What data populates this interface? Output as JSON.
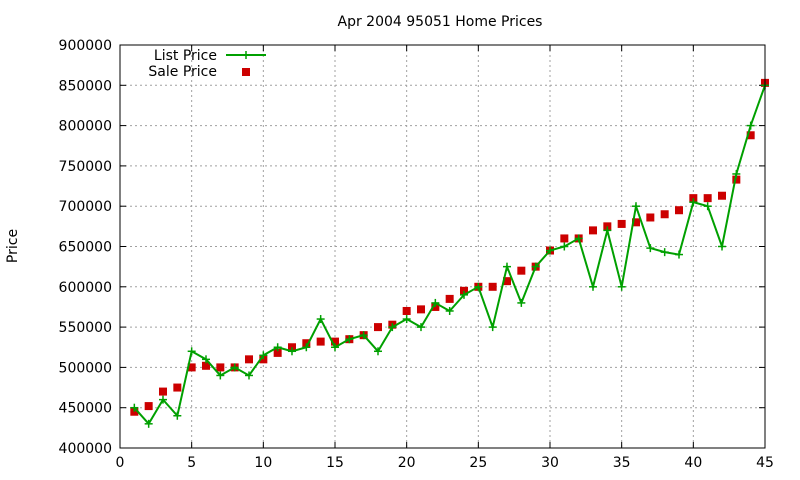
{
  "chart_data": {
    "type": "line",
    "title": "Apr 2004 95051 Home Prices",
    "xlabel": "",
    "ylabel": "Price",
    "xlim": [
      0,
      45
    ],
    "ylim": [
      400000,
      900000
    ],
    "xticks": [
      "0",
      "5",
      "10",
      "15",
      "20",
      "25",
      "30",
      "35",
      "40",
      "45"
    ],
    "yticks": [
      "400000",
      "450000",
      "500000",
      "550000",
      "600000",
      "650000",
      "700000",
      "750000",
      "800000",
      "850000",
      "900000"
    ],
    "grid": true,
    "legend_position": "top-left",
    "series": [
      {
        "name": "List Price",
        "style": "line-points",
        "color": "#00a000",
        "x": [
          1,
          2,
          3,
          4,
          5,
          6,
          7,
          8,
          9,
          10,
          11,
          12,
          13,
          14,
          15,
          16,
          17,
          18,
          19,
          20,
          21,
          22,
          23,
          24,
          25,
          26,
          27,
          28,
          29,
          30,
          31,
          32,
          33,
          34,
          35,
          36,
          37,
          38,
          39,
          40,
          41,
          42,
          43,
          44,
          45
        ],
        "y": [
          450000,
          430000,
          460000,
          440000,
          520000,
          510000,
          490000,
          500000,
          490000,
          515000,
          525000,
          520000,
          525000,
          560000,
          525000,
          535000,
          540000,
          520000,
          550000,
          560000,
          550000,
          580000,
          570000,
          590000,
          600000,
          550000,
          625000,
          580000,
          625000,
          645000,
          650000,
          660000,
          600000,
          670000,
          600000,
          700000,
          648000,
          643000,
          640000,
          705000,
          700000,
          650000,
          740000,
          800000,
          850000
        ]
      },
      {
        "name": "Sale Price",
        "style": "points",
        "color": "#cc0000",
        "x": [
          1,
          2,
          3,
          4,
          5,
          6,
          7,
          8,
          9,
          10,
          11,
          12,
          13,
          14,
          15,
          16,
          17,
          18,
          19,
          20,
          21,
          22,
          23,
          24,
          25,
          26,
          27,
          28,
          29,
          30,
          31,
          32,
          33,
          34,
          35,
          36,
          37,
          38,
          39,
          40,
          41,
          42,
          43,
          44,
          45
        ],
        "y": [
          445000,
          452000,
          470000,
          475000,
          500000,
          502000,
          500000,
          500000,
          510000,
          510000,
          518000,
          525000,
          530000,
          532000,
          532000,
          535000,
          540000,
          550000,
          553000,
          570000,
          572000,
          575000,
          585000,
          595000,
          600000,
          600000,
          607000,
          620000,
          625000,
          645000,
          660000,
          660000,
          670000,
          675000,
          678000,
          680000,
          686000,
          690000,
          695000,
          710000,
          710000,
          713000,
          733000,
          788000,
          853000
        ]
      }
    ]
  }
}
